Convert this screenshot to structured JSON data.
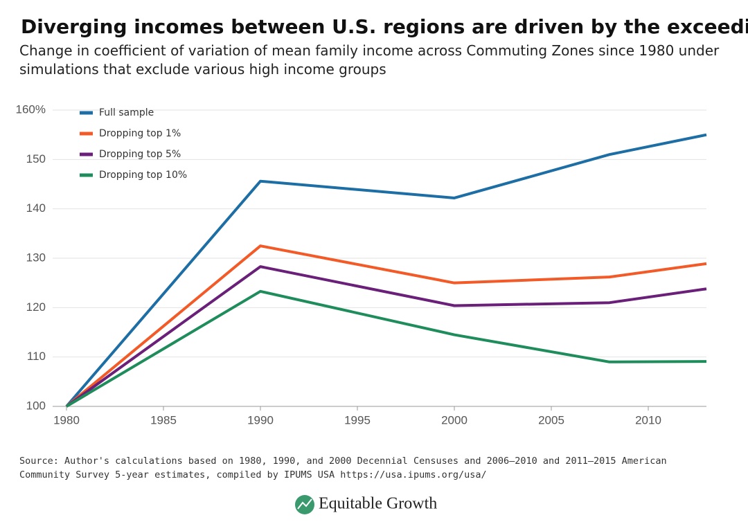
{
  "chart_data": {
    "type": "line",
    "title": "Diverging incomes between U.S. regions are driven by the exceedingly rich",
    "subtitle": "Change in coefficient of variation of mean family income across Commuting Zones since 1980 under simulations that exclude various high income groups",
    "source": "Source: Author's calculations based on 1980, 1990, and 2000 Decennial Censuses and 2006—2010 and 2011—2015 American Community Survey 5-year estimates, compiled by IPUMS USA https://usa.ipums.org/usa/",
    "x": [
      1980,
      1990,
      2000,
      2008,
      2013
    ],
    "series": [
      {
        "name": "Full sample",
        "color": "#1c6ea4",
        "values": [
          100,
          145.6,
          142.2,
          151,
          155
        ]
      },
      {
        "name": "Dropping top 1%",
        "color": "#f25a28",
        "values": [
          100,
          132.5,
          125,
          126.2,
          128.9
        ]
      },
      {
        "name": "Dropping top 5%",
        "color": "#6a2079",
        "values": [
          100,
          128.3,
          120.4,
          121,
          123.8
        ]
      },
      {
        "name": "Dropping top 10%",
        "color": "#1f8c5c",
        "values": [
          100,
          123.3,
          114.5,
          109,
          109.1
        ]
      }
    ],
    "xlim": [
      1980,
      2013
    ],
    "xticks": [
      1980,
      1985,
      1990,
      1995,
      2000,
      2005,
      2010
    ],
    "ylim": [
      100,
      160
    ],
    "yticks": [
      100,
      110,
      120,
      130,
      140,
      150,
      {
        "value": 160,
        "label": "160%"
      }
    ],
    "grid": true,
    "legend": "top-left"
  },
  "logo": "Equitable Growth"
}
